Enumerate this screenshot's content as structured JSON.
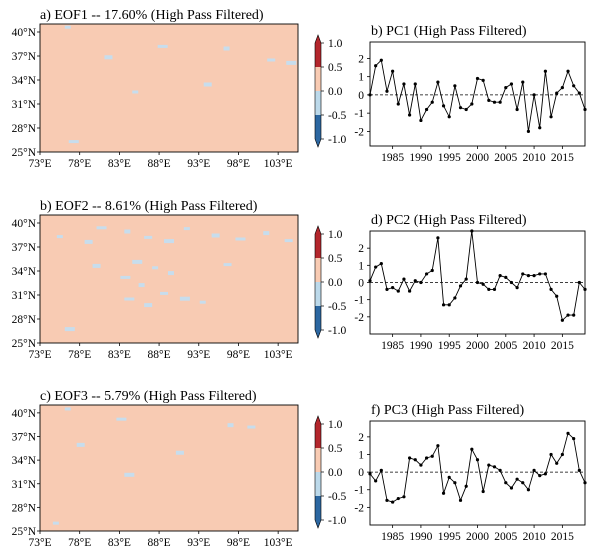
{
  "colors": {
    "map_fill": "#f8cbb3",
    "map_patch": "#c7dded",
    "cbar": [
      "#2c67a1",
      "#bcd9ea",
      "#f8cbb3",
      "#b3262c"
    ]
  },
  "chart_data": [
    {
      "type": "heatmap",
      "id": "eof1",
      "title": "a) EOF1 -- 17.60% (High Pass Filtered)",
      "xticks": [
        "73°E",
        "78°E",
        "83°E",
        "88°E",
        "93°E",
        "98°E",
        "103°E"
      ],
      "yticks": [
        "25°N",
        "28°N",
        "31°N",
        "34°N",
        "37°N",
        "40°N"
      ],
      "xlim": [
        73,
        105.5
      ],
      "ylim": [
        25,
        41
      ],
      "colorbar": {
        "ticks": [
          "-1.0",
          "-0.5",
          "0.0",
          "0.5",
          "1.0"
        ],
        "levels": [
          -1.0,
          -0.5,
          0.0,
          0.5,
          1.0
        ],
        "extend": "both"
      },
      "patches": [
        {
          "lon": 76.5,
          "lat": 40.6
        },
        {
          "lon": 81.5,
          "lat": 36.9
        },
        {
          "lon": 88.2,
          "lat": 38.2
        },
        {
          "lon": 96.5,
          "lat": 38.0
        },
        {
          "lon": 102.0,
          "lat": 36.5
        },
        {
          "lon": 104.4,
          "lat": 36.2
        },
        {
          "lon": 85.0,
          "lat": 32.5
        },
        {
          "lon": 94.0,
          "lat": 33.5
        },
        {
          "lon": 77.0,
          "lat": 26.3
        }
      ]
    },
    {
      "type": "line",
      "id": "pc1",
      "title": "b) PC1 (High Pass Filtered)",
      "x": [
        1981,
        1982,
        1983,
        1984,
        1985,
        1986,
        1987,
        1988,
        1989,
        1990,
        1991,
        1992,
        1993,
        1994,
        1995,
        1996,
        1997,
        1998,
        1999,
        2000,
        2001,
        2002,
        2003,
        2004,
        2005,
        2006,
        2007,
        2008,
        2009,
        2010,
        2011,
        2012,
        2013,
        2014,
        2015,
        2016,
        2017,
        2018,
        2019
      ],
      "y": [
        0.0,
        1.6,
        1.9,
        0.2,
        1.3,
        -0.5,
        0.6,
        -1.1,
        0.6,
        -1.4,
        -0.8,
        -0.4,
        0.7,
        -0.6,
        -1.2,
        0.5,
        -0.7,
        -0.8,
        -0.5,
        0.9,
        0.8,
        -0.3,
        -0.4,
        -0.4,
        0.4,
        0.6,
        -0.8,
        0.7,
        -2.0,
        0.0,
        -1.8,
        1.3,
        -1.2,
        0.1,
        0.4,
        1.3,
        0.5,
        0.1,
        -0.8
      ],
      "xticks": [
        1985,
        1990,
        1995,
        2000,
        2005,
        2010,
        2015
      ],
      "yticks": [
        -2,
        -1,
        0,
        1,
        2
      ],
      "xlim": [
        1981,
        2019
      ],
      "ylim": [
        -2.8,
        2.9
      ]
    },
    {
      "type": "heatmap",
      "id": "eof2",
      "title": "b) EOF2 -- 8.61% (High Pass Filtered)",
      "xticks": [
        "73°E",
        "78°E",
        "83°E",
        "88°E",
        "93°E",
        "98°E",
        "103°E"
      ],
      "yticks": [
        "25°N",
        "28°N",
        "31°N",
        "34°N",
        "37°N",
        "40°N"
      ],
      "xlim": [
        73,
        105.5
      ],
      "ylim": [
        25,
        41
      ],
      "colorbar": {
        "ticks": [
          "-1.0",
          "-0.5",
          "0.0",
          "0.5",
          "1.0"
        ],
        "levels": [
          -1.0,
          -0.5,
          0.0,
          0.5,
          1.0
        ],
        "extend": "both"
      },
      "patches": [
        {
          "lon": 75.5,
          "lat": 38.3
        },
        {
          "lon": 79.0,
          "lat": 37.7
        },
        {
          "lon": 80.5,
          "lat": 39.4
        },
        {
          "lon": 84.0,
          "lat": 39.0
        },
        {
          "lon": 86.5,
          "lat": 38.2
        },
        {
          "lon": 89.0,
          "lat": 37.8
        },
        {
          "lon": 91.5,
          "lat": 39.3
        },
        {
          "lon": 95.0,
          "lat": 38.5
        },
        {
          "lon": 98.0,
          "lat": 38.0
        },
        {
          "lon": 101.5,
          "lat": 38.8
        },
        {
          "lon": 104.2,
          "lat": 37.8
        },
        {
          "lon": 85.0,
          "lat": 35.2
        },
        {
          "lon": 87.5,
          "lat": 34.4
        },
        {
          "lon": 80.0,
          "lat": 34.7
        },
        {
          "lon": 83.5,
          "lat": 33.2
        },
        {
          "lon": 85.8,
          "lat": 32.3
        },
        {
          "lon": 88.5,
          "lat": 31.2
        },
        {
          "lon": 91.0,
          "lat": 30.6
        },
        {
          "lon": 93.5,
          "lat": 30.1
        },
        {
          "lon": 86.5,
          "lat": 29.8
        },
        {
          "lon": 84.0,
          "lat": 30.5
        },
        {
          "lon": 89.5,
          "lat": 33.8
        },
        {
          "lon": 96.5,
          "lat": 34.8
        },
        {
          "lon": 76.5,
          "lat": 26.8
        }
      ]
    },
    {
      "type": "line",
      "id": "pc2",
      "title": "d) PC2 (High Pass Filtered)",
      "x": [
        1981,
        1982,
        1983,
        1984,
        1985,
        1986,
        1987,
        1988,
        1989,
        1990,
        1991,
        1992,
        1993,
        1994,
        1995,
        1996,
        1997,
        1998,
        1999,
        2000,
        2001,
        2002,
        2003,
        2004,
        2005,
        2006,
        2007,
        2008,
        2009,
        2010,
        2011,
        2012,
        2013,
        2014,
        2015,
        2016,
        2017,
        2018,
        2019
      ],
      "y": [
        0.1,
        0.9,
        1.1,
        -0.4,
        -0.3,
        -0.5,
        0.2,
        -0.5,
        0.1,
        0.0,
        0.5,
        0.7,
        2.6,
        -1.3,
        -1.3,
        -0.9,
        -0.2,
        0.2,
        3.0,
        0.0,
        -0.1,
        -0.4,
        -0.4,
        0.4,
        0.3,
        0.0,
        -0.3,
        0.5,
        0.4,
        0.4,
        0.5,
        0.5,
        -0.4,
        -0.8,
        -2.2,
        -1.9,
        -1.9,
        0.0,
        -0.4
      ],
      "xticks": [
        1985,
        1990,
        1995,
        2000,
        2005,
        2010,
        2015
      ],
      "yticks": [
        -2,
        -1,
        0,
        1,
        2
      ],
      "xlim": [
        1981,
        2019
      ],
      "ylim": [
        -3.0,
        3.0
      ]
    },
    {
      "type": "heatmap",
      "id": "eof3",
      "title": "c) EOF3 -- 5.79% (High Pass Filtered)",
      "xticks": [
        "73°E",
        "78°E",
        "83°E",
        "88°E",
        "93°E",
        "98°E",
        "103°E"
      ],
      "yticks": [
        "25°N",
        "28°N",
        "31°N",
        "34°N",
        "37°N",
        "40°N"
      ],
      "xlim": [
        73,
        105.5
      ],
      "ylim": [
        25,
        41
      ],
      "colorbar": {
        "ticks": [
          "-1.0",
          "-0.5",
          "0.0",
          "0.5",
          "1.0"
        ],
        "levels": [
          -1.0,
          -0.5,
          0.0,
          0.5,
          1.0
        ],
        "extend": "both"
      },
      "patches": [
        {
          "lon": 76.5,
          "lat": 40.5
        },
        {
          "lon": 78.0,
          "lat": 36.0
        },
        {
          "lon": 83.0,
          "lat": 39.2
        },
        {
          "lon": 97.0,
          "lat": 38.5
        },
        {
          "lon": 99.5,
          "lat": 38.2
        },
        {
          "lon": 84.0,
          "lat": 32.2
        },
        {
          "lon": 75.0,
          "lat": 26.0
        },
        {
          "lon": 90.5,
          "lat": 35.0
        }
      ]
    },
    {
      "type": "line",
      "id": "pc3",
      "title": "f) PC3 (High Pass Filtered)",
      "x": [
        1981,
        1982,
        1983,
        1984,
        1985,
        1986,
        1987,
        1988,
        1989,
        1990,
        1991,
        1992,
        1993,
        1994,
        1995,
        1996,
        1997,
        1998,
        1999,
        2000,
        2001,
        2002,
        2003,
        2004,
        2005,
        2006,
        2007,
        2008,
        2009,
        2010,
        2011,
        2012,
        2013,
        2014,
        2015,
        2016,
        2017,
        2018,
        2019
      ],
      "y": [
        -0.1,
        -0.5,
        0.1,
        -1.6,
        -1.7,
        -1.5,
        -1.4,
        0.8,
        0.7,
        0.4,
        0.8,
        0.9,
        1.5,
        -1.2,
        -0.3,
        -0.6,
        -1.6,
        -0.8,
        1.3,
        0.7,
        -1.1,
        0.4,
        0.3,
        0.1,
        -0.6,
        -0.9,
        -0.4,
        -0.6,
        -1.0,
        0.1,
        -0.2,
        -0.1,
        1.0,
        0.5,
        1.0,
        2.2,
        1.9,
        0.1,
        -0.6
      ],
      "xticks": [
        1985,
        1990,
        1995,
        2000,
        2005,
        2010,
        2015
      ],
      "yticks": [
        -2,
        -1,
        0,
        1,
        2
      ],
      "xlim": [
        1981,
        2019
      ],
      "ylim": [
        -3.0,
        2.9
      ]
    }
  ]
}
